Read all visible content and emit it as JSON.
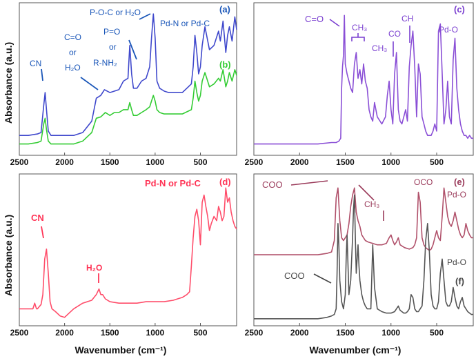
{
  "figure": {
    "ylabel": "Absorbance (a.u.)",
    "xlabel": "Wavenumber (cm⁻¹)"
  },
  "chart_data": [
    {
      "id": "top-left",
      "type": "line",
      "xlim": [
        2500,
        100
      ],
      "ylim": [
        0,
        1
      ],
      "xticks": [
        2500,
        2000,
        1500,
        1000,
        500
      ],
      "series": [
        {
          "name": "(a)",
          "color": "#3f48cc",
          "x": [
            2500,
            2400,
            2300,
            2260,
            2230,
            2215,
            2200,
            2180,
            2150,
            2100,
            2000,
            1900,
            1800,
            1700,
            1650,
            1600,
            1560,
            1500,
            1450,
            1400,
            1350,
            1300,
            1280,
            1260,
            1240,
            1200,
            1150,
            1100,
            1060,
            1040,
            1020,
            1000,
            980,
            950,
            900,
            850,
            800,
            700,
            600,
            580,
            560,
            540,
            520,
            500,
            480,
            450,
            400,
            350,
            300,
            280,
            250,
            220,
            200,
            180,
            150,
            120,
            100
          ],
          "y": [
            0.12,
            0.12,
            0.13,
            0.14,
            0.33,
            0.42,
            0.3,
            0.15,
            0.12,
            0.12,
            0.12,
            0.12,
            0.14,
            0.22,
            0.38,
            0.4,
            0.44,
            0.42,
            0.43,
            0.44,
            0.5,
            0.52,
            0.75,
            0.55,
            0.45,
            0.45,
            0.5,
            0.52,
            0.6,
            0.8,
            0.97,
            0.8,
            0.5,
            0.45,
            0.43,
            0.42,
            0.42,
            0.42,
            0.48,
            0.6,
            0.82,
            0.7,
            0.55,
            0.6,
            0.75,
            0.88,
            0.72,
            0.75,
            0.85,
            0.78,
            0.92,
            0.7,
            0.82,
            0.88,
            0.78,
            0.95,
            0.86
          ]
        },
        {
          "name": "(b)",
          "color": "#33cc33",
          "x": [
            2500,
            2400,
            2300,
            2260,
            2230,
            2215,
            2200,
            2180,
            2150,
            2100,
            2000,
            1900,
            1800,
            1700,
            1650,
            1600,
            1550,
            1500,
            1450,
            1400,
            1350,
            1300,
            1280,
            1260,
            1240,
            1200,
            1150,
            1100,
            1060,
            1040,
            1020,
            1000,
            980,
            950,
            900,
            850,
            800,
            700,
            600,
            580,
            560,
            540,
            520,
            500,
            480,
            450,
            400,
            350,
            300,
            280,
            250,
            220,
            200,
            180,
            150,
            120,
            100
          ],
          "y": [
            0.06,
            0.06,
            0.07,
            0.08,
            0.2,
            0.24,
            0.16,
            0.08,
            0.06,
            0.06,
            0.06,
            0.06,
            0.08,
            0.14,
            0.24,
            0.25,
            0.28,
            0.26,
            0.28,
            0.28,
            0.3,
            0.3,
            0.35,
            0.3,
            0.26,
            0.26,
            0.28,
            0.3,
            0.32,
            0.36,
            0.4,
            0.36,
            0.3,
            0.28,
            0.27,
            0.27,
            0.27,
            0.27,
            0.3,
            0.38,
            0.5,
            0.42,
            0.36,
            0.4,
            0.5,
            0.56,
            0.46,
            0.48,
            0.52,
            0.5,
            0.58,
            0.46,
            0.5,
            0.56,
            0.5,
            0.58,
            0.54
          ]
        }
      ],
      "panel_labels": [
        "(a)",
        "(b)"
      ],
      "annotations": [
        "CN",
        "C=O",
        "or",
        "H₂O",
        "P-O-C or H₂O",
        "P=O",
        "or",
        "R-NH₂",
        "Pd-N or Pd-C"
      ]
    },
    {
      "id": "top-right",
      "type": "line",
      "xlim": [
        2500,
        100
      ],
      "ylim": [
        0,
        1
      ],
      "xticks": [
        2500,
        2000,
        1500,
        1000,
        500
      ],
      "series": [
        {
          "name": "(c)",
          "color": "#8a4fd6",
          "x": [
            2500,
            2200,
            2000,
            1800,
            1650,
            1600,
            1570,
            1550,
            1540,
            1530,
            1520,
            1510,
            1500,
            1480,
            1460,
            1440,
            1420,
            1400,
            1380,
            1360,
            1340,
            1320,
            1300,
            1280,
            1260,
            1240,
            1220,
            1200,
            1180,
            1150,
            1100,
            1060,
            1040,
            1020,
            1000,
            980,
            960,
            940,
            920,
            900,
            880,
            860,
            840,
            820,
            800,
            780,
            760,
            740,
            720,
            700,
            680,
            660,
            640,
            620,
            600,
            580,
            560,
            540,
            520,
            500,
            480,
            460,
            440,
            420,
            400,
            380,
            360,
            340,
            320,
            300,
            280,
            260,
            240,
            220,
            200,
            180,
            160,
            140,
            120,
            100
          ],
          "y": [
            0.06,
            0.06,
            0.06,
            0.06,
            0.07,
            0.07,
            0.08,
            0.1,
            0.45,
            0.6,
            0.68,
            0.96,
            0.62,
            0.55,
            0.5,
            0.45,
            0.42,
            0.62,
            0.7,
            0.52,
            0.58,
            0.48,
            0.62,
            0.5,
            0.45,
            0.3,
            0.25,
            0.22,
            0.35,
            0.25,
            0.2,
            0.25,
            0.4,
            0.5,
            0.3,
            0.2,
            0.55,
            0.7,
            0.3,
            0.22,
            0.2,
            0.25,
            0.3,
            0.22,
            0.6,
            0.75,
            0.85,
            0.6,
            0.25,
            0.62,
            0.55,
            0.25,
            0.2,
            0.15,
            0.12,
            0.12,
            0.12,
            0.15,
            0.2,
            0.15,
            0.85,
            0.9,
            0.55,
            0.2,
            0.3,
            0.5,
            0.25,
            0.2,
            0.65,
            0.8,
            0.45,
            0.3,
            0.2,
            0.15,
            0.12,
            0.12,
            0.1,
            0.12,
            0.1,
            0.1
          ]
        }
      ],
      "panel_labels": [
        "(c)"
      ],
      "annotations": [
        "C=O",
        "CH₃",
        "CH₃",
        "CO",
        "CH",
        "Pd-O"
      ]
    },
    {
      "id": "bottom-left",
      "type": "line",
      "xlim": [
        2500,
        100
      ],
      "ylim": [
        0,
        1
      ],
      "xticks": [
        2500,
        2000,
        1500,
        1000,
        500
      ],
      "series": [
        {
          "name": "(d)",
          "color": "#ff4d6a",
          "x": [
            2500,
            2400,
            2350,
            2330,
            2310,
            2300,
            2260,
            2240,
            2220,
            2200,
            2180,
            2160,
            2140,
            2100,
            2050,
            2000,
            1950,
            1900,
            1800,
            1700,
            1650,
            1620,
            1600,
            1580,
            1550,
            1500,
            1400,
            1300,
            1200,
            1100,
            1000,
            900,
            800,
            700,
            650,
            620,
            600,
            580,
            560,
            540,
            520,
            500,
            480,
            460,
            440,
            420,
            400,
            380,
            350,
            320,
            300,
            280,
            260,
            240,
            220,
            200,
            180,
            160,
            140,
            120,
            100
          ],
          "y": [
            0.1,
            0.1,
            0.1,
            0.14,
            0.1,
            0.1,
            0.13,
            0.2,
            0.45,
            0.52,
            0.35,
            0.15,
            0.1,
            0.08,
            0.05,
            0.04,
            0.07,
            0.1,
            0.14,
            0.16,
            0.2,
            0.24,
            0.2,
            0.2,
            0.17,
            0.15,
            0.14,
            0.14,
            0.14,
            0.15,
            0.15,
            0.15,
            0.16,
            0.18,
            0.2,
            0.22,
            0.4,
            0.6,
            0.75,
            0.8,
            0.72,
            0.55,
            0.85,
            0.9,
            0.82,
            0.75,
            0.65,
            0.7,
            0.75,
            0.72,
            0.82,
            0.78,
            0.72,
            0.75,
            0.95,
            0.85,
            0.88,
            0.78,
            0.72,
            0.68,
            0.66
          ]
        }
      ],
      "panel_labels": [
        "(d)"
      ],
      "annotations": [
        "CN",
        "H₂O",
        "Pd-N or Pd-C"
      ]
    },
    {
      "id": "bottom-right",
      "type": "line",
      "xlim": [
        2500,
        100
      ],
      "ylim": [
        0,
        1
      ],
      "xticks": [
        2500,
        2000,
        1500,
        1000,
        500
      ],
      "series": [
        {
          "name": "(e)",
          "color": "#b0506a",
          "x": [
            2500,
            2200,
            2000,
            1800,
            1700,
            1650,
            1620,
            1600,
            1580,
            1560,
            1540,
            1520,
            1500,
            1480,
            1460,
            1440,
            1420,
            1400,
            1380,
            1360,
            1340,
            1320,
            1300,
            1280,
            1250,
            1200,
            1150,
            1100,
            1050,
            1020,
            1000,
            980,
            960,
            940,
            920,
            900,
            850,
            800,
            760,
            740,
            720,
            700,
            680,
            660,
            640,
            620,
            600,
            580,
            560,
            540,
            520,
            500,
            480,
            460,
            440,
            420,
            400,
            380,
            360,
            340,
            320,
            300,
            280,
            260,
            240,
            220,
            200,
            180,
            160,
            140,
            120,
            100
          ],
          "y": [
            0.48,
            0.48,
            0.48,
            0.48,
            0.49,
            0.5,
            0.58,
            0.88,
            0.95,
            0.72,
            0.6,
            0.58,
            0.6,
            0.62,
            0.7,
            0.82,
            0.9,
            0.95,
            0.78,
            0.72,
            0.68,
            0.62,
            0.6,
            0.58,
            0.57,
            0.56,
            0.55,
            0.55,
            0.56,
            0.6,
            0.62,
            0.58,
            0.55,
            0.57,
            0.6,
            0.55,
            0.53,
            0.52,
            0.53,
            0.55,
            0.6,
            0.92,
            0.85,
            0.6,
            0.55,
            0.53,
            0.52,
            0.51,
            0.52,
            0.55,
            0.6,
            0.65,
            0.6,
            0.58,
            0.75,
            0.95,
            0.85,
            0.75,
            0.7,
            0.68,
            0.72,
            0.78,
            0.72,
            0.66,
            0.62,
            0.6,
            0.62,
            0.7,
            0.65,
            0.62,
            0.6,
            0.6
          ]
        },
        {
          "name": "(f)",
          "color": "#555555",
          "x": [
            2500,
            2200,
            2000,
            1800,
            1700,
            1650,
            1620,
            1600,
            1590,
            1580,
            1570,
            1560,
            1540,
            1520,
            1500,
            1490,
            1480,
            1470,
            1460,
            1440,
            1420,
            1410,
            1400,
            1390,
            1380,
            1370,
            1360,
            1350,
            1340,
            1320,
            1300,
            1280,
            1260,
            1240,
            1220,
            1200,
            1180,
            1150,
            1100,
            1050,
            1000,
            960,
            940,
            920,
            900,
            880,
            860,
            840,
            820,
            800,
            780,
            760,
            740,
            720,
            700,
            680,
            660,
            640,
            620,
            600,
            580,
            560,
            540,
            520,
            500,
            480,
            460,
            440,
            420,
            400,
            380,
            360,
            340,
            320,
            300,
            280,
            260,
            240,
            220,
            200,
            180,
            160,
            140,
            120,
            100
          ],
          "y": [
            0.03,
            0.03,
            0.03,
            0.03,
            0.04,
            0.05,
            0.06,
            0.1,
            0.35,
            0.7,
            0.55,
            0.3,
            0.15,
            0.1,
            0.2,
            0.45,
            0.62,
            0.4,
            0.2,
            0.3,
            0.6,
            0.8,
            0.9,
            0.6,
            0.35,
            0.45,
            0.55,
            0.4,
            0.3,
            0.2,
            0.15,
            0.12,
            0.1,
            0.1,
            0.1,
            0.55,
            0.25,
            0.1,
            0.08,
            0.07,
            0.07,
            0.08,
            0.1,
            0.12,
            0.09,
            0.08,
            0.07,
            0.07,
            0.08,
            0.1,
            0.2,
            0.18,
            0.1,
            0.08,
            0.08,
            0.1,
            0.12,
            0.3,
            0.58,
            0.7,
            0.5,
            0.2,
            0.12,
            0.1,
            0.1,
            0.15,
            0.35,
            0.45,
            0.3,
            0.15,
            0.12,
            0.12,
            0.15,
            0.25,
            0.18,
            0.12,
            0.1,
            0.15,
            0.18,
            0.12,
            0.1,
            0.08,
            0.07,
            0.06,
            0.06
          ]
        }
      ],
      "panel_labels": [
        "(e)",
        "(f)"
      ],
      "annotations": [
        "COO",
        "CH₃",
        "OCO",
        "Pd-O",
        "Pd-O",
        "COO"
      ]
    }
  ]
}
